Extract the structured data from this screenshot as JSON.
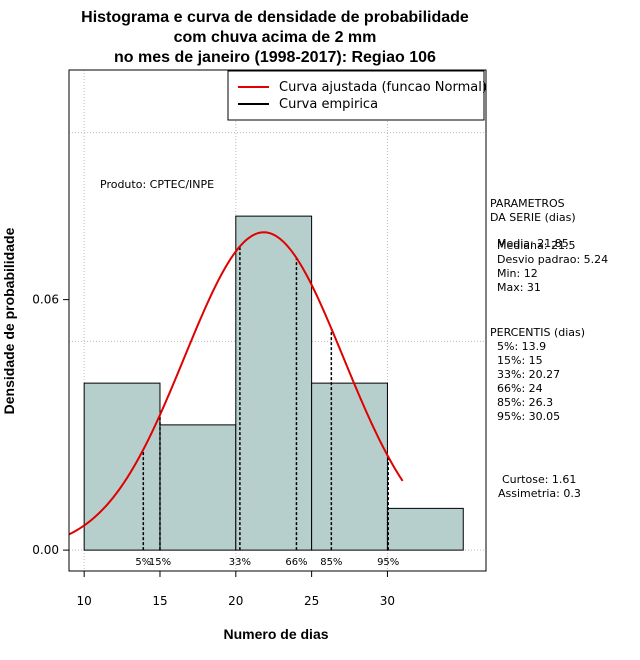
{
  "chart_data": {
    "type": "bar",
    "title_lines": [
      "Histograma e curva de densidade de probabilidade",
      "com chuva acima de 2 mm",
      "no mes de janeiro (1998-2017): Regiao 106"
    ],
    "xlabel": "Numero de dias",
    "ylabel": "Densidade de probabilidade",
    "xlim": [
      9,
      36.5
    ],
    "ylim": [
      -0.005,
      0.115
    ],
    "x_ticks": [
      10,
      15,
      20,
      25,
      30
    ],
    "y_ticks": [
      0.0,
      0.06
    ],
    "y_tick_labels": [
      "0.00",
      "0.06"
    ],
    "grid_x": [
      10,
      20,
      30
    ],
    "grid_y": [
      0.0,
      0.05,
      0.1
    ],
    "histogram": {
      "bins": [
        [
          10,
          15
        ],
        [
          15,
          20
        ],
        [
          20,
          25
        ],
        [
          25,
          30
        ],
        [
          30,
          35
        ]
      ],
      "density": [
        0.04,
        0.03,
        0.08,
        0.04,
        0.01
      ],
      "fill": "#b6cfcd"
    },
    "normal_curve": {
      "name": "Curva ajustada (funcao Normal)",
      "mean": 21.85,
      "sd": 5.24,
      "x_range": [
        9,
        31
      ],
      "color": "#e00000"
    },
    "empirical_curve": {
      "name": "Curva empirica",
      "color": "#000000"
    },
    "percentile_lines": [
      {
        "x": 13.9,
        "label": "5%"
      },
      {
        "x": 15,
        "label": "15%"
      },
      {
        "x": 20.27,
        "label": "33%"
      },
      {
        "x": 24,
        "label": "66%"
      },
      {
        "x": 26.3,
        "label": "85%"
      },
      {
        "x": 30.05,
        "label": "95%"
      }
    ],
    "annotation": "Produto: CPTEC/INPE",
    "legend_position": "top-right"
  },
  "side_panel": {
    "parametros": [
      "PARAMETROS",
      "DA SERIE (dias)",
      "  Media: 21.85",
      "  Mediana: 21.5",
      "  Desvio padrao: 5.24",
      "  Min: 12",
      "  Max: 31"
    ],
    "percentis": [
      "PERCENTIS (dias)",
      "  5%: 13.9",
      "  15%: 15",
      "  33%: 20.27",
      "  66%: 24",
      "  85%: 26.3",
      "  95%: 30.05"
    ],
    "stats": [
      "Curtose: 1.61",
      "Assimetria: 0.3"
    ]
  }
}
